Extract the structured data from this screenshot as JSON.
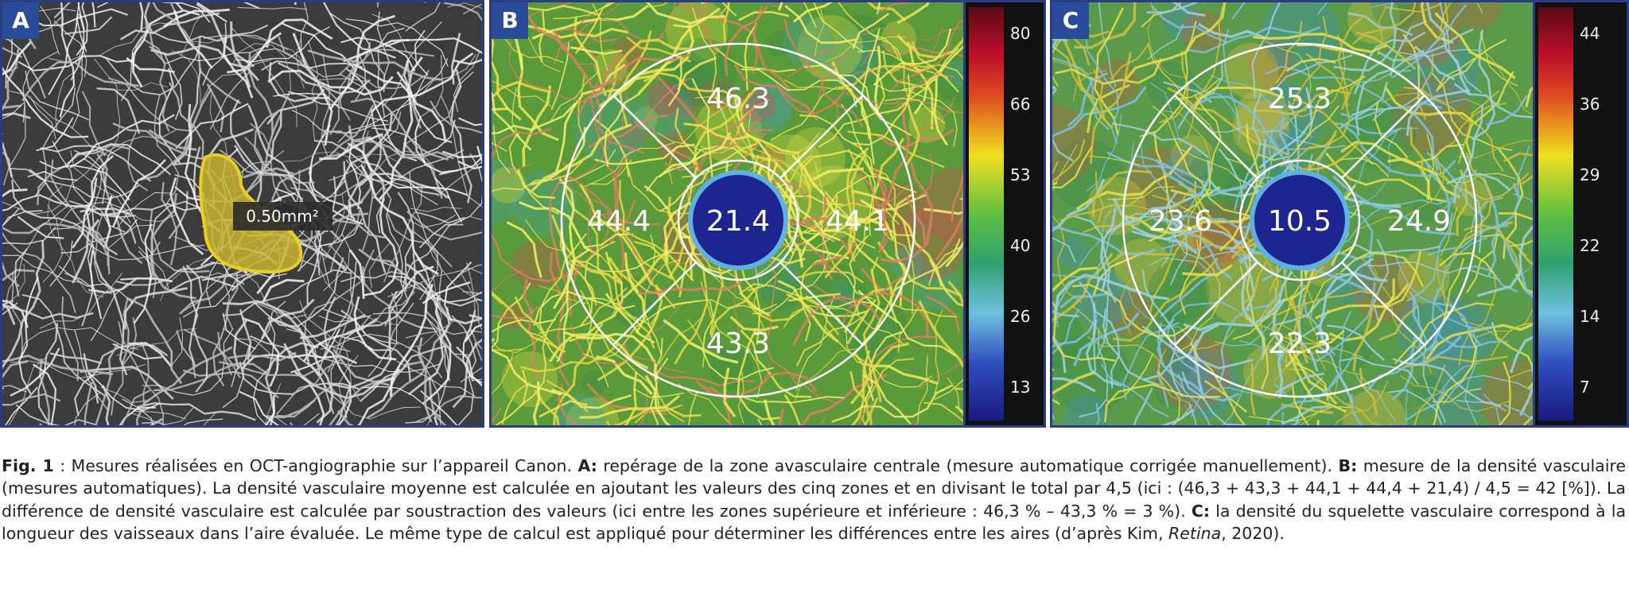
{
  "panels": [
    {
      "label": "A",
      "area_label": "0.50mm²"
    },
    {
      "label": "B",
      "sectors": {
        "superior": "46.3",
        "temporal": "44.4",
        "center": "21.4",
        "nasal": "44.1",
        "inferior": "43.3"
      },
      "scale_ticks": [
        "80",
        "66",
        "53",
        "40",
        "26",
        "13"
      ]
    },
    {
      "label": "C",
      "sectors": {
        "superior": "25.3",
        "temporal": "23.6",
        "center": "10.5",
        "nasal": "24.9",
        "inferior": "22.3"
      },
      "scale_ticks": [
        "44",
        "36",
        "29",
        "22",
        "14",
        "7"
      ]
    }
  ],
  "caption": {
    "segments": [
      "Fig. 1",
      " : Mesures réalisées en OCT-angiographie sur l’appareil Canon. ",
      "A:",
      " repérage de la zone avasculaire centrale (mesure automatique corrigée manuellement). ",
      "B:",
      " mesure de la densité vasculaire (mesures automatiques). La densité vasculaire moyenne est calculée en ajoutant les valeurs des cinq zones et en divisant le total par 4,5 (ici : (46,3 + 43,3 + 44,1 + 44,4 + 21,4) / 4,5 = 42 [%]). La différence de densité vasculaire est calculée par soustraction des valeurs (ici entre les zones supérieure et inférieure : 46,3 % – 43,3 % = 3 %). ",
      "C:",
      " la densité du squelette vasculaire correspond à la longueur des vaisseaux dans l’aire évaluée. Le même type de calcul est appliqué pour déterminer les différences entre les aires (d’après Kim, ",
      "Retina",
      ", 2020)."
    ]
  }
}
